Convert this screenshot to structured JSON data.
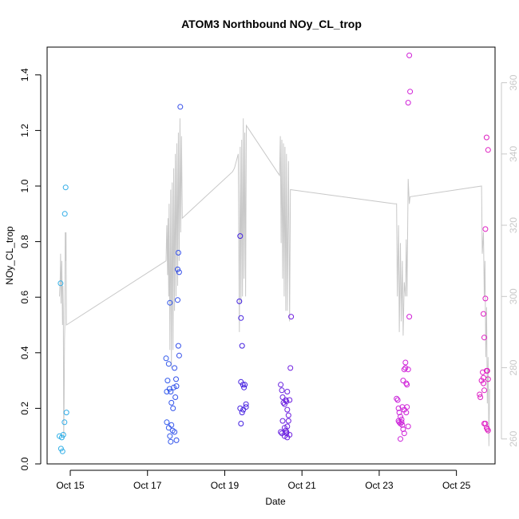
{
  "chart_data": {
    "type": "scatter",
    "title": "ATOM3 Northbound NOy_CL_trop",
    "xlabel": "Date",
    "ylabel": "NOy_CL_trop",
    "xlim": [
      14.4,
      26.0
    ],
    "ylim": [
      0.0,
      1.5
    ],
    "y2lim": [
      253,
      370
    ],
    "x_tick_labels": [
      "Oct 15",
      "Oct 17",
      "Oct 19",
      "Oct 21",
      "Oct 23",
      "Oct 25"
    ],
    "x_tick_values": [
      15,
      17,
      19,
      21,
      23,
      25
    ],
    "y_tick_labels": [
      "0.0",
      "0.2",
      "0.4",
      "0.6",
      "0.8",
      "1.0",
      "1.2",
      "1.4"
    ],
    "y_tick_values": [
      0,
      0.2,
      0.4,
      0.6,
      0.8,
      1.0,
      1.2,
      1.4
    ],
    "y2_tick_labels": [
      "260",
      "280",
      "300",
      "320",
      "340",
      "360"
    ],
    "y2_tick_values": [
      260,
      280,
      300,
      320,
      340,
      360
    ],
    "grid": false,
    "legend": "none",
    "point_color_gradient": [
      "#2fb4e6",
      "#2f6ff0",
      "#3a20e0",
      "#8a20e0",
      "#d020d8",
      "#e020c0"
    ],
    "line_color": "#c8c8c8",
    "points": [
      [
        14.75,
        0.65
      ],
      [
        14.72,
        0.1
      ],
      [
        14.78,
        0.095
      ],
      [
        14.82,
        0.105
      ],
      [
        14.76,
        0.055
      ],
      [
        14.8,
        0.045
      ],
      [
        14.85,
        0.15
      ],
      [
        14.9,
        0.185
      ],
      [
        14.86,
        0.9
      ],
      [
        14.88,
        0.995
      ],
      [
        17.48,
        0.38
      ],
      [
        17.52,
        0.3
      ],
      [
        17.55,
        0.36
      ],
      [
        17.5,
        0.26
      ],
      [
        17.57,
        0.27
      ],
      [
        17.6,
        0.26
      ],
      [
        17.62,
        0.22
      ],
      [
        17.66,
        0.2
      ],
      [
        17.58,
        0.58
      ],
      [
        17.7,
        0.345
      ],
      [
        17.68,
        0.275
      ],
      [
        17.72,
        0.24
      ],
      [
        17.74,
        0.305
      ],
      [
        17.75,
        0.28
      ],
      [
        17.5,
        0.15
      ],
      [
        17.55,
        0.13
      ],
      [
        17.58,
        0.1
      ],
      [
        17.62,
        0.14
      ],
      [
        17.65,
        0.12
      ],
      [
        17.6,
        0.08
      ],
      [
        17.7,
        0.115
      ],
      [
        17.75,
        0.085
      ],
      [
        17.78,
        0.7
      ],
      [
        17.82,
        0.69
      ],
      [
        17.8,
        0.76
      ],
      [
        17.78,
        0.59
      ],
      [
        17.8,
        0.425
      ],
      [
        17.82,
        0.39
      ],
      [
        17.85,
        1.285
      ],
      [
        19.4,
        0.82
      ],
      [
        19.38,
        0.585
      ],
      [
        19.42,
        0.525
      ],
      [
        19.45,
        0.425
      ],
      [
        19.42,
        0.295
      ],
      [
        19.47,
        0.285
      ],
      [
        19.5,
        0.275
      ],
      [
        19.52,
        0.285
      ],
      [
        19.4,
        0.2
      ],
      [
        19.45,
        0.185
      ],
      [
        19.48,
        0.195
      ],
      [
        19.55,
        0.215
      ],
      [
        19.55,
        0.205
      ],
      [
        19.42,
        0.145
      ],
      [
        20.45,
        0.285
      ],
      [
        20.48,
        0.265
      ],
      [
        20.5,
        0.24
      ],
      [
        20.52,
        0.22
      ],
      [
        20.55,
        0.215
      ],
      [
        20.58,
        0.23
      ],
      [
        20.6,
        0.225
      ],
      [
        20.62,
        0.195
      ],
      [
        20.65,
        0.175
      ],
      [
        20.68,
        0.23
      ],
      [
        20.5,
        0.155
      ],
      [
        20.55,
        0.13
      ],
      [
        20.58,
        0.12
      ],
      [
        20.6,
        0.115
      ],
      [
        20.62,
        0.135
      ],
      [
        20.55,
        0.1
      ],
      [
        20.6,
        0.11
      ],
      [
        20.62,
        0.095
      ],
      [
        20.68,
        0.105
      ],
      [
        20.65,
        0.155
      ],
      [
        20.45,
        0.115
      ],
      [
        20.48,
        0.11
      ],
      [
        20.7,
        0.345
      ],
      [
        20.72,
        0.53
      ],
      [
        20.62,
        0.26
      ],
      [
        23.45,
        0.235
      ],
      [
        23.48,
        0.23
      ],
      [
        23.5,
        0.2
      ],
      [
        23.52,
        0.185
      ],
      [
        23.55,
        0.17
      ],
      [
        23.58,
        0.16
      ],
      [
        23.5,
        0.155
      ],
      [
        23.52,
        0.15
      ],
      [
        23.55,
        0.145
      ],
      [
        23.58,
        0.15
      ],
      [
        23.6,
        0.14
      ],
      [
        23.62,
        0.3
      ],
      [
        23.65,
        0.34
      ],
      [
        23.68,
        0.365
      ],
      [
        23.7,
        0.29
      ],
      [
        23.72,
        0.285
      ],
      [
        23.75,
        0.34
      ],
      [
        23.6,
        0.205
      ],
      [
        23.65,
        0.195
      ],
      [
        23.7,
        0.185
      ],
      [
        23.62,
        0.125
      ],
      [
        23.65,
        0.11
      ],
      [
        23.55,
        0.09
      ],
      [
        23.72,
        0.205
      ],
      [
        23.75,
        0.135
      ],
      [
        23.78,
        0.53
      ],
      [
        23.75,
        1.3
      ],
      [
        23.8,
        1.34
      ],
      [
        23.78,
        1.47
      ],
      [
        23.68,
        0.345
      ],
      [
        25.6,
        0.25
      ],
      [
        25.62,
        0.24
      ],
      [
        25.65,
        0.3
      ],
      [
        25.68,
        0.33
      ],
      [
        25.7,
        0.31
      ],
      [
        25.72,
        0.265
      ],
      [
        25.75,
        0.845
      ],
      [
        25.7,
        0.54
      ],
      [
        25.72,
        0.455
      ],
      [
        25.75,
        0.595
      ],
      [
        25.78,
        0.335
      ],
      [
        25.8,
        0.335
      ],
      [
        25.82,
        0.305
      ],
      [
        25.72,
        0.145
      ],
      [
        25.75,
        0.145
      ],
      [
        25.78,
        0.13
      ],
      [
        25.8,
        0.125
      ],
      [
        25.82,
        0.12
      ],
      [
        25.78,
        1.175
      ],
      [
        25.82,
        1.13
      ],
      [
        25.7,
        0.29
      ]
    ],
    "line_series": [
      [
        14.72,
        300
      ],
      [
        14.74,
        305
      ],
      [
        14.75,
        312
      ],
      [
        14.76,
        298
      ],
      [
        14.78,
        310
      ],
      [
        14.79,
        300
      ],
      [
        14.8,
        292
      ],
      [
        14.81,
        303
      ],
      [
        14.82,
        296
      ],
      [
        14.83,
        260
      ],
      [
        14.84,
        270
      ],
      [
        14.85,
        288
      ],
      [
        14.86,
        292
      ],
      [
        14.87,
        318
      ],
      [
        14.88,
        310
      ],
      [
        14.89,
        318
      ],
      [
        14.9,
        292
      ],
      [
        17.48,
        310
      ],
      [
        17.5,
        320
      ],
      [
        17.52,
        306
      ],
      [
        17.53,
        322
      ],
      [
        17.55,
        300
      ],
      [
        17.56,
        326
      ],
      [
        17.58,
        285
      ],
      [
        17.6,
        330
      ],
      [
        17.62,
        280
      ],
      [
        17.64,
        332
      ],
      [
        17.66,
        285
      ],
      [
        17.68,
        336
      ],
      [
        17.7,
        296
      ],
      [
        17.72,
        340
      ],
      [
        17.74,
        300
      ],
      [
        17.76,
        343
      ],
      [
        17.78,
        303
      ],
      [
        17.8,
        346
      ],
      [
        17.82,
        310
      ],
      [
        17.84,
        350
      ],
      [
        17.86,
        318
      ],
      [
        17.88,
        345
      ],
      [
        17.9,
        322
      ],
      [
        19.2,
        335
      ],
      [
        19.25,
        336
      ],
      [
        19.3,
        338
      ],
      [
        19.35,
        340
      ],
      [
        19.38,
        290
      ],
      [
        19.4,
        342
      ],
      [
        19.42,
        298
      ],
      [
        19.44,
        344
      ],
      [
        19.46,
        300
      ],
      [
        19.48,
        350
      ],
      [
        19.5,
        305
      ],
      [
        19.52,
        346
      ],
      [
        19.54,
        300
      ],
      [
        19.56,
        348
      ],
      [
        20.42,
        334
      ],
      [
        20.44,
        345
      ],
      [
        20.46,
        315
      ],
      [
        20.48,
        344
      ],
      [
        20.5,
        305
      ],
      [
        20.52,
        343
      ],
      [
        20.54,
        300
      ],
      [
        20.56,
        342
      ],
      [
        20.58,
        296
      ],
      [
        20.6,
        340
      ],
      [
        20.62,
        296
      ],
      [
        20.65,
        338
      ],
      [
        20.68,
        293
      ],
      [
        20.7,
        330
      ],
      [
        23.4,
        326
      ],
      [
        23.45,
        326
      ],
      [
        23.47,
        300
      ],
      [
        23.5,
        320
      ],
      [
        23.52,
        290
      ],
      [
        23.55,
        315
      ],
      [
        23.57,
        293
      ],
      [
        23.6,
        310
      ],
      [
        23.62,
        289
      ],
      [
        23.65,
        304
      ],
      [
        23.68,
        300
      ],
      [
        23.7,
        316
      ],
      [
        23.72,
        300
      ],
      [
        23.75,
        333
      ],
      [
        23.78,
        326
      ],
      [
        23.8,
        328
      ],
      [
        25.65,
        331
      ],
      [
        25.67,
        312
      ],
      [
        25.7,
        318
      ],
      [
        25.72,
        300
      ],
      [
        25.74,
        310
      ],
      [
        25.76,
        283
      ],
      [
        25.78,
        297
      ],
      [
        25.8,
        270
      ],
      [
        25.82,
        283
      ],
      [
        25.84,
        258
      ],
      [
        25.86,
        274
      ]
    ],
    "line_bridges": [
      [
        14.9,
        292
      ],
      [
        17.48,
        310
      ],
      [
        17.9,
        322
      ],
      [
        19.2,
        335
      ],
      [
        19.56,
        348
      ],
      [
        20.42,
        334
      ],
      [
        20.7,
        330
      ],
      [
        23.4,
        326
      ],
      [
        23.8,
        328
      ],
      [
        25.65,
        331
      ]
    ]
  }
}
